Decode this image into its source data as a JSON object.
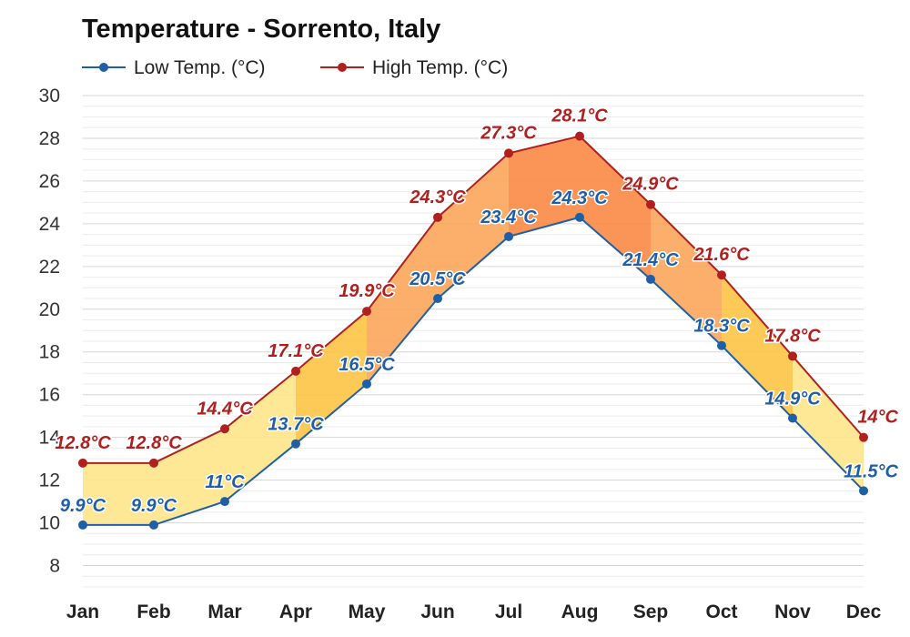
{
  "chart_data": {
    "type": "area",
    "title": "Temperature - Sorrento, Italy",
    "categories": [
      "Jan",
      "Feb",
      "Mar",
      "Apr",
      "May",
      "Jun",
      "Jul",
      "Aug",
      "Sep",
      "Oct",
      "Nov",
      "Dec"
    ],
    "series": [
      {
        "name": "Low Temp. (°C)",
        "values": [
          9.9,
          9.9,
          11,
          13.7,
          16.5,
          20.5,
          23.4,
          24.3,
          21.4,
          18.3,
          14.9,
          11.5
        ],
        "labels": [
          "9.9°C",
          "9.9°C",
          "11°C",
          "13.7°C",
          "16.5°C",
          "20.5°C",
          "23.4°C",
          "24.3°C",
          "21.4°C",
          "18.3°C",
          "14.9°C",
          "11.5°C"
        ],
        "color": "#1f5fa8"
      },
      {
        "name": "High Temp. (°C)",
        "values": [
          12.8,
          12.8,
          14.4,
          17.1,
          19.9,
          24.3,
          27.3,
          28.1,
          24.9,
          21.6,
          17.8,
          14
        ],
        "labels": [
          "12.8°C",
          "12.8°C",
          "14.4°C",
          "17.1°C",
          "19.9°C",
          "24.3°C",
          "27.3°C",
          "28.1°C",
          "24.9°C",
          "21.6°C",
          "17.8°C",
          "14°C"
        ],
        "color": "#b0201e"
      }
    ],
    "yticks": [
      "8",
      "10",
      "12",
      "14",
      "16",
      "18",
      "20",
      "22",
      "24",
      "26",
      "28",
      "30"
    ],
    "ytick_values": [
      8,
      10,
      12,
      14,
      16,
      18,
      20,
      22,
      24,
      26,
      28,
      30
    ],
    "ylim": [
      7,
      30
    ],
    "xlabel": "",
    "ylabel": "",
    "grid": true,
    "legend": "top-left",
    "fill_colors": {
      "cool": "#ffe58a",
      "mild": "#fdc445",
      "warm": "#fba65a",
      "hot": "#f98a45"
    }
  }
}
